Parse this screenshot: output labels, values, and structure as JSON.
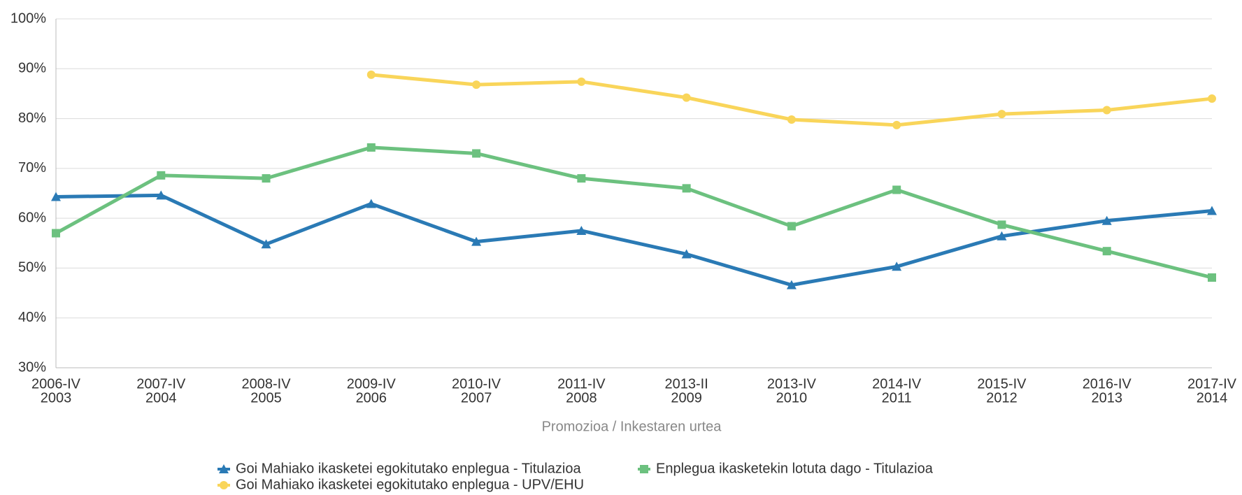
{
  "chart_data": {
    "type": "line",
    "x_label": "Promozioa / Inkestaren urtea",
    "categories": [
      [
        "2006-IV",
        "2003"
      ],
      [
        "2007-IV",
        "2004"
      ],
      [
        "2008-IV",
        "2005"
      ],
      [
        "2009-IV",
        "2006"
      ],
      [
        "2010-IV",
        "2007"
      ],
      [
        "2011-IV",
        "2008"
      ],
      [
        "2013-II",
        "2009"
      ],
      [
        "2013-IV",
        "2010"
      ],
      [
        "2014-IV",
        "2011"
      ],
      [
        "2015-IV",
        "2012"
      ],
      [
        "2016-IV",
        "2013"
      ],
      [
        "2017-IV",
        "2014"
      ]
    ],
    "series": [
      {
        "name": "Goi Mahiako ikasketei egokitutako enplegua - Titulazioa",
        "color": "#2a7ab5",
        "marker": "triangle",
        "values": [
          64.3,
          64.6,
          54.8,
          62.9,
          55.3,
          57.5,
          52.8,
          46.6,
          50.3,
          56.4,
          59.5,
          61.5
        ]
      },
      {
        "name": "Enplegua ikasketekin lotuta dago - Titulazioa",
        "color": "#6cc17f",
        "marker": "square",
        "values": [
          57.0,
          68.6,
          68.0,
          74.2,
          73.0,
          68.0,
          66.0,
          58.4,
          65.7,
          58.7,
          53.4,
          48.1
        ]
      },
      {
        "name": "Goi Mahiako ikasketei egokitutako enplegua - UPV/EHU",
        "color": "#f9d55a",
        "marker": "circle",
        "values": [
          null,
          null,
          null,
          88.8,
          86.8,
          87.4,
          84.2,
          79.8,
          78.7,
          80.9,
          81.7,
          84.0
        ]
      }
    ],
    "ylim": [
      30,
      100
    ],
    "yticks": [
      {
        "value": 30,
        "label": "30%"
      },
      {
        "value": 40,
        "label": "40%"
      },
      {
        "value": 50,
        "label": "50%"
      },
      {
        "value": 60,
        "label": "60%"
      },
      {
        "value": 70,
        "label": "70%"
      },
      {
        "value": 80,
        "label": "80%"
      },
      {
        "value": 90,
        "label": "90%"
      },
      {
        "value": 100,
        "label": "100%"
      }
    ],
    "grid": true,
    "legend": "bottom"
  }
}
